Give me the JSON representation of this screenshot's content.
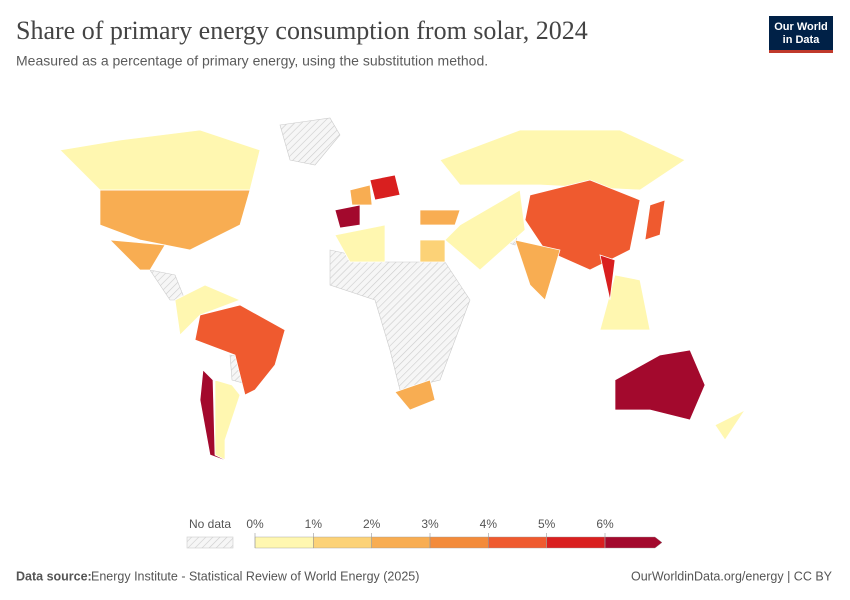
{
  "header": {
    "title": "Share of primary energy consumption from solar, 2024",
    "subtitle": "Measured as a percentage of primary energy, using the substitution method.",
    "logo_lines": [
      "Our World",
      "in Data"
    ]
  },
  "chart_data": {
    "type": "choropleth",
    "values": [
      2.6,
      0.6,
      2.8,
      4.3,
      0.8,
      6.5,
      0.6,
      0.2,
      4.2,
      2.6,
      6.5,
      6.5,
      5.5,
      2.8,
      2.2,
      4.5,
      0.5,
      1.8,
      2.4,
      0.4,
      0.5,
      5.3,
      0.6
    ],
    "legend": {
      "no_data_label": "No data",
      "ticks": [
        {
          "value": 0,
          "label": "0%"
        },
        {
          "value": 1,
          "label": "1%"
        },
        {
          "value": 2,
          "label": "2%"
        },
        {
          "value": 3,
          "label": "3%"
        },
        {
          "value": 4,
          "label": "4%"
        },
        {
          "value": 5,
          "label": "5%"
        },
        {
          "value": 6,
          "label": "6%"
        }
      ],
      "colors": [
        "#fff7b0",
        "#fcd277",
        "#f8ad52",
        "#f38b3b",
        "#ef5a2f",
        "#d91f1f",
        "#a3092d"
      ]
    }
  },
  "footer": {
    "source_label": "Data source:",
    "source": "Energy Institute - Statistical Review of World Energy (2025)",
    "url": "OurWorldinData.org/energy | CC BY"
  }
}
